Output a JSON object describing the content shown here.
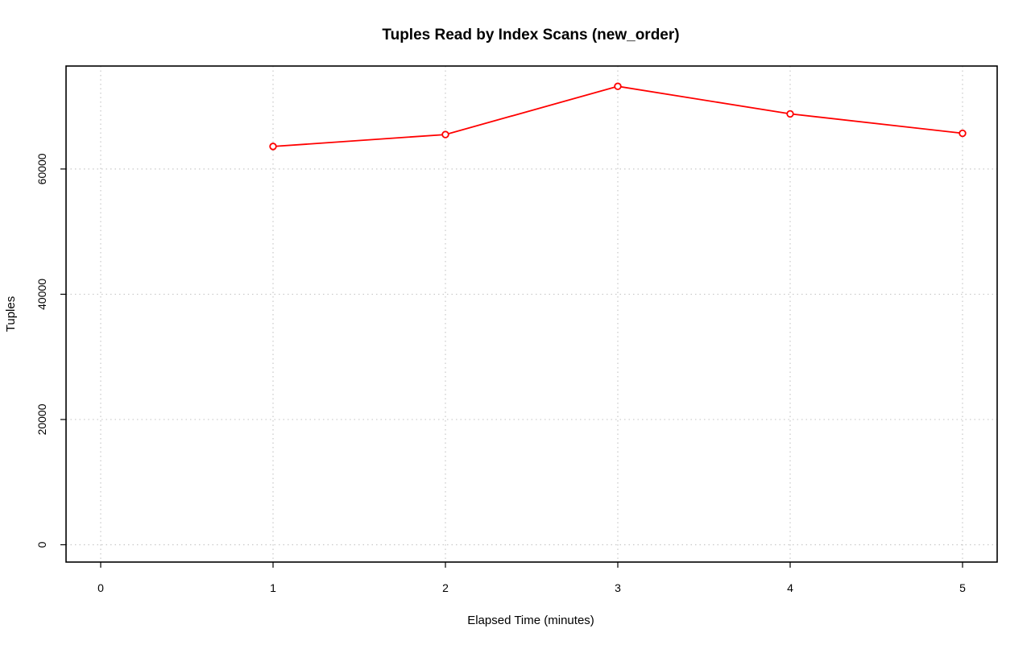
{
  "chart_data": {
    "type": "line",
    "title": "Tuples Read by Index Scans (new_order)",
    "xlabel": "Elapsed Time (minutes)",
    "ylabel": "Tuples",
    "xlim": [
      0,
      5
    ],
    "ylim": [
      0,
      70000
    ],
    "x_ticks": [
      0,
      1,
      2,
      3,
      4,
      5
    ],
    "x_tick_labels": [
      "0",
      "1",
      "2",
      "3",
      "4",
      "5"
    ],
    "y_ticks": [
      0,
      20000,
      40000,
      60000
    ],
    "y_tick_labels": [
      "0",
      "20000",
      "40000",
      "60000"
    ],
    "grid": true,
    "legend": "none",
    "series": [
      {
        "color": "#ff0000",
        "marker": "open-circle",
        "x": [
          1,
          2,
          3,
          4,
          5
        ],
        "y": [
          63600,
          65500,
          73200,
          68800,
          65700
        ]
      }
    ]
  }
}
